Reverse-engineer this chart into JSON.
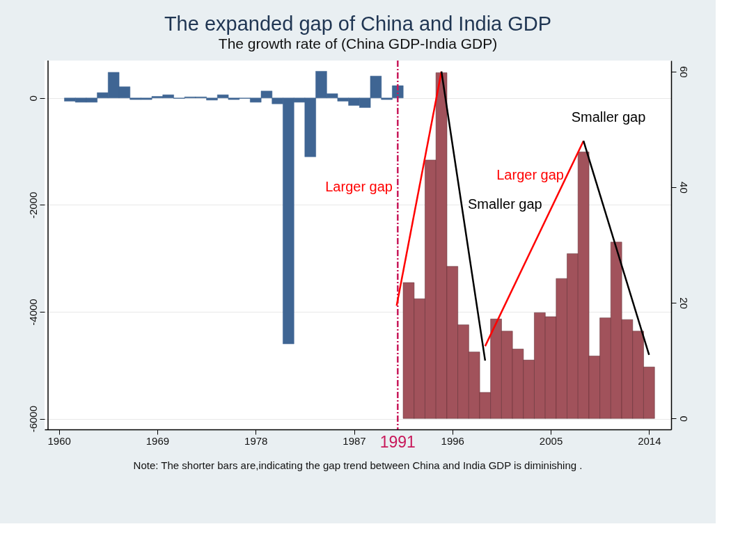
{
  "chart_data": {
    "type": "bar",
    "title": "The expanded gap of China and India GDP",
    "subtitle": "The growth rate of (China GDP-India GDP)",
    "xlim": [
      1959,
      2015.7
    ],
    "xticks": [
      1960,
      1969,
      1978,
      1987,
      1996,
      2005,
      2014
    ],
    "ylim": [
      -6200,
      700
    ],
    "yticks": [
      -6000,
      -4000,
      -2000,
      0
    ],
    "y2lim": [
      -1.9,
      61.9
    ],
    "y2ticks": [
      0,
      20,
      40,
      60
    ],
    "grid": "y",
    "series": [
      {
        "color": "#3f6593",
        "x": [
          1961,
          1962,
          1963,
          1964,
          1965,
          1966,
          1967,
          1968,
          1969,
          1970,
          1971,
          1972,
          1973,
          1974,
          1975,
          1976,
          1977,
          1978,
          1979,
          1980,
          1981,
          1982,
          1983,
          1984,
          1985,
          1986,
          1987,
          1988,
          1989,
          1990,
          1991
        ],
        "values": [
          -60,
          -80,
          -80,
          100,
          480,
          210,
          -30,
          -30,
          30,
          60,
          -10,
          20,
          20,
          -40,
          60,
          -30,
          -10,
          -80,
          130,
          -110,
          -4600,
          -80,
          -1100,
          500,
          80,
          -60,
          -140,
          -180,
          410,
          -30,
          230
        ]
      },
      {
        "color": "#a1525b",
        "axis": "y2",
        "x": [
          1992,
          1993,
          1994,
          1995,
          1996,
          1997,
          1998,
          1999,
          2000,
          2001,
          2002,
          2003,
          2004,
          2005,
          2006,
          2007,
          2008,
          2009,
          2010,
          2011,
          2012,
          2013,
          2014
        ],
        "values": [
          23.5,
          20.7,
          44.7,
          59.8,
          26.3,
          16.2,
          11.5,
          4.5,
          17.2,
          15.1,
          12.0,
          10.1,
          18.3,
          17.6,
          24.2,
          28.5,
          46.1,
          10.8,
          17.4,
          30.5,
          17.1,
          15.1,
          8.9
        ]
      },
      {
        "type": "line",
        "color": "#ff0000",
        "axis": "y2",
        "x": [
          1990.9,
          1995,
          1997,
          1999,
          2008
        ],
        "values": [
          19.5,
          60,
          null,
          12.5,
          48
        ]
      },
      {
        "type": "line",
        "color": "#000000",
        "axis": "y2",
        "x": [
          1995,
          1999,
          2003,
          2008,
          2014
        ],
        "values": [
          60,
          10,
          null,
          48,
          11
        ]
      }
    ],
    "ref_lines": [
      {
        "axis": "x",
        "value": 1991,
        "label": "1991",
        "color": "#c8185a",
        "line_style": "dashed"
      }
    ],
    "annotations": [
      "Larger gap",
      "Smaller gap",
      "Larger gap",
      "Smaller gap",
      "Note: The shorter bars are,indicating the gap trend between China and India GDP is diminishing ."
    ]
  }
}
